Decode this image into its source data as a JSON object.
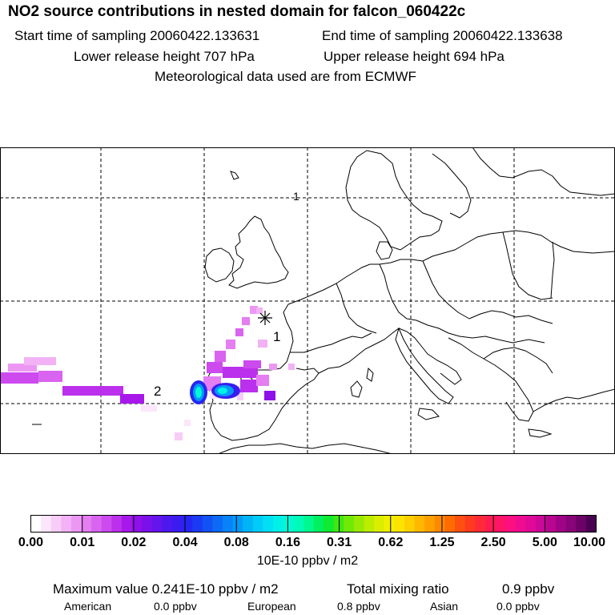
{
  "header": {
    "title": "NO2 source contributions in nested domain for falcon_060422c",
    "start_label": "Start time of sampling 20060422.133631",
    "end_label": "End time of sampling 20060422.133638",
    "lower_label": "Lower release height  707 hPa",
    "upper_label": "Upper release height  694 hPa",
    "met_label": "Meteorological data used are from ECMWF"
  },
  "map": {
    "point_labels": [
      "1",
      "2"
    ]
  },
  "colorbar": {
    "ticks": [
      "0.00",
      "0.01",
      "0.02",
      "0.04",
      "0.08",
      "0.16",
      "0.31",
      "0.62",
      "1.25",
      "2.50",
      "5.00",
      "10.00"
    ],
    "units": "10E-10 ppbv / m2",
    "colors": [
      "#ffffff",
      "#fbe6fb",
      "#f7ccf7",
      "#f2b2f5",
      "#ec98f3",
      "#e47ef1",
      "#d964ef",
      "#cc4aee",
      "#bb30ec",
      "#a818ea",
      "#8f10e8",
      "#7a10ea",
      "#6414ec",
      "#4d18ee",
      "#3a1cf0",
      "#2626f2",
      "#1a3af4",
      "#1252f5",
      "#0c6af6",
      "#0882f7",
      "#049af8",
      "#00b4f8",
      "#00ccf8",
      "#00e0f4",
      "#00f0e8",
      "#00f8d4",
      "#00fab8",
      "#00f890",
      "#00f060",
      "#10ea30",
      "#40e810",
      "#70e808",
      "#98ea04",
      "#bcec00",
      "#dcee00",
      "#f2ee00",
      "#fce400",
      "#fed000",
      "#feb800",
      "#fea000",
      "#fe8800",
      "#fe6c00",
      "#fe5010",
      "#fe3a20",
      "#fe2a38",
      "#fe1c50",
      "#fe1468",
      "#fc1080",
      "#f00c90",
      "#e00a98",
      "#cc0898",
      "#b80690",
      "#a00486",
      "#880478",
      "#6c0268",
      "#4a0050"
    ]
  },
  "footer": {
    "max_value": "Maximum value  0.241E-10 ppbv / m2",
    "total_label": "Total mixing ratio",
    "total_value": "0.9 ppbv",
    "american_label": "American",
    "american_value": "0.0 ppbv",
    "european_label": "European",
    "european_value": "0.8 ppbv",
    "asian_label": "Asian",
    "asian_value": "0.0 ppbv"
  }
}
